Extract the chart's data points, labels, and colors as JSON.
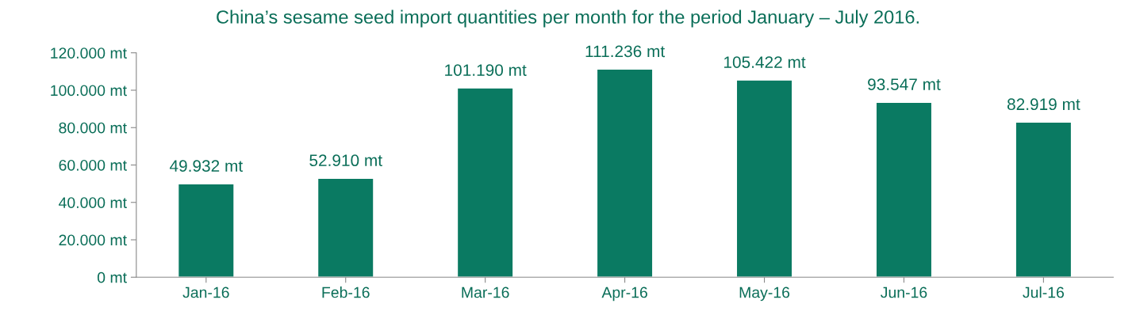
{
  "chart_data": {
    "type": "bar",
    "title": "China’s sesame seed import quantities per month for the period January – July 2016.",
    "categories": [
      "Jan-16",
      "Feb-16",
      "Mar-16",
      "Apr-16",
      "May-16",
      "Jun-16",
      "Jul-16"
    ],
    "values": [
      49932,
      52910,
      101190,
      111236,
      105422,
      93547,
      82919
    ],
    "value_labels": [
      "49.932 mt",
      "52.910 mt",
      "101.190 mt",
      "111.236 mt",
      "105.422 mt",
      "93.547 mt",
      "82.919 mt"
    ],
    "color": "#0a7a62",
    "ylim": [
      0,
      120000
    ],
    "yticks": [
      {
        "value": 0,
        "label": "0 mt"
      },
      {
        "value": 20000,
        "label": "20.000 mt"
      },
      {
        "value": 40000,
        "label": "40.000 mt"
      },
      {
        "value": 60000,
        "label": "60.000 mt"
      },
      {
        "value": 80000,
        "label": "80.000 mt"
      },
      {
        "value": 100000,
        "label": "100.000 mt"
      },
      {
        "value": 120000,
        "label": "120.000 mt"
      }
    ],
    "grid": false,
    "legend": false
  }
}
